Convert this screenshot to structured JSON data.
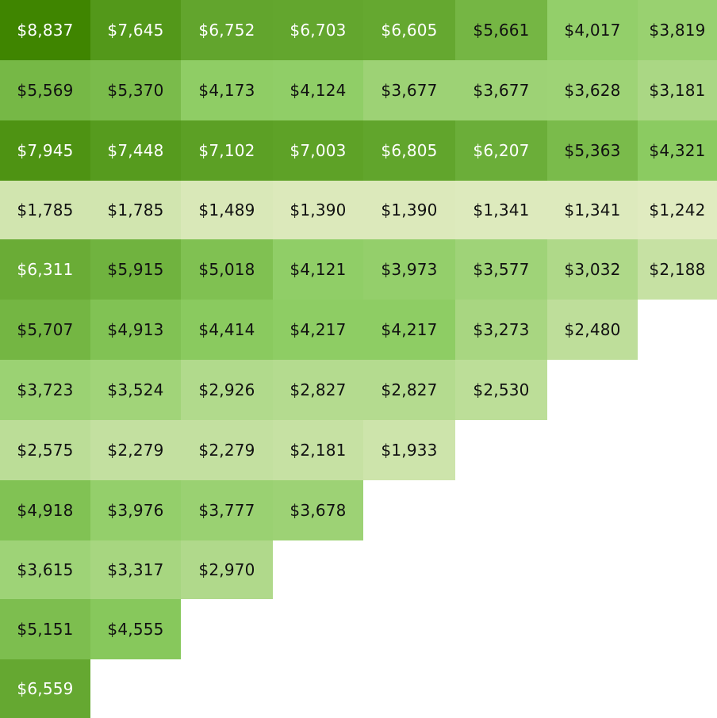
{
  "chart_data": {
    "type": "heatmap",
    "title": "",
    "xlabel": "",
    "ylabel": "",
    "color_scale": {
      "low": "#e0ebc0",
      "mid": "#8ccc62",
      "high": "#3f8500"
    },
    "rows": [
      {
        "values": [
          "$8,837",
          "$7,645",
          "$6,752",
          "$6,703",
          "$6,605",
          "$5,661",
          "$4,017",
          "$3,819"
        ],
        "numbers": [
          8837,
          7645,
          6752,
          6703,
          6605,
          5661,
          4017,
          3819
        ]
      },
      {
        "values": [
          "$5,569",
          "$5,370",
          "$4,173",
          "$4,124",
          "$3,677",
          "$3,677",
          "$3,628",
          "$3,181"
        ],
        "numbers": [
          5569,
          5370,
          4173,
          4124,
          3677,
          3677,
          3628,
          3181
        ]
      },
      {
        "values": [
          "$7,945",
          "$7,448",
          "$7,102",
          "$7,003",
          "$6,805",
          "$6,207",
          "$5,363",
          "$4,321"
        ],
        "numbers": [
          7945,
          7448,
          7102,
          7003,
          6805,
          6207,
          5363,
          4321
        ]
      },
      {
        "values": [
          "$1,785",
          "$1,785",
          "$1,489",
          "$1,390",
          "$1,390",
          "$1,341",
          "$1,341",
          "$1,242"
        ],
        "numbers": [
          1785,
          1785,
          1489,
          1390,
          1390,
          1341,
          1341,
          1242
        ]
      },
      {
        "values": [
          "$6,311",
          "$5,915",
          "$5,018",
          "$4,121",
          "$3,973",
          "$3,577",
          "$3,032",
          "$2,188"
        ],
        "numbers": [
          6311,
          5915,
          5018,
          4121,
          3973,
          3577,
          3032,
          2188
        ]
      },
      {
        "values": [
          "$5,707",
          "$4,913",
          "$4,414",
          "$4,217",
          "$4,217",
          "$3,273",
          "$2,480"
        ],
        "numbers": [
          5707,
          4913,
          4414,
          4217,
          4217,
          3273,
          2480
        ]
      },
      {
        "values": [
          "$3,723",
          "$3,524",
          "$2,926",
          "$2,827",
          "$2,827",
          "$2,530"
        ],
        "numbers": [
          3723,
          3524,
          2926,
          2827,
          2827,
          2530
        ]
      },
      {
        "values": [
          "$2,575",
          "$2,279",
          "$2,279",
          "$2,181",
          "$1,933"
        ],
        "numbers": [
          2575,
          2279,
          2279,
          2181,
          1933
        ]
      },
      {
        "values": [
          "$4,918",
          "$3,976",
          "$3,777",
          "$3,678"
        ],
        "numbers": [
          4918,
          3976,
          3777,
          3678
        ]
      },
      {
        "values": [
          "$3,615",
          "$3,317",
          "$2,970"
        ],
        "numbers": [
          3615,
          3317,
          2970
        ]
      },
      {
        "values": [
          "$5,151",
          "$4,555"
        ],
        "numbers": [
          5151,
          4555
        ]
      },
      {
        "values": [
          "$6,559"
        ],
        "numbers": [
          6559
        ]
      }
    ]
  }
}
